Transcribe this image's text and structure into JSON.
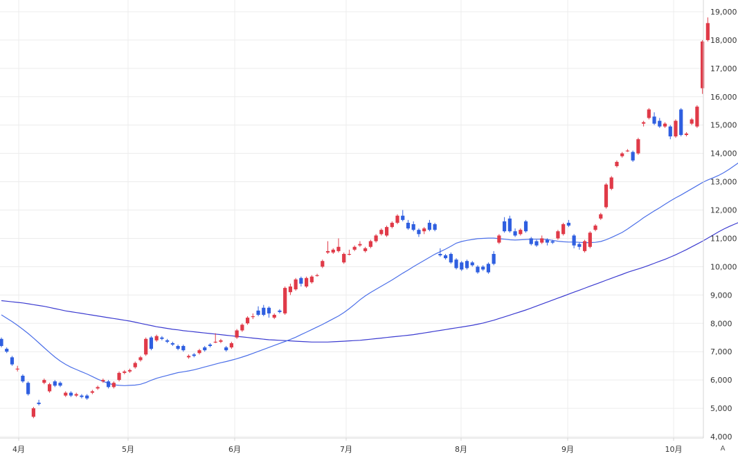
{
  "chart_data": {
    "type": "candlestick",
    "y_axis": {
      "min": 4000,
      "max": 19000,
      "ticks": [
        "4,000",
        "5,000",
        "6,000",
        "7,000",
        "8,000",
        "9,000",
        "10,000",
        "11,000",
        "12,000",
        "13,000",
        "14,000",
        "15,000",
        "16,000",
        "17,000",
        "18,000",
        "19,000"
      ]
    },
    "x_axis": {
      "ticks": [
        "4月",
        "5月",
        "6月",
        "7月",
        "8月",
        "9月",
        "10月"
      ]
    },
    "grid": true,
    "colors": {
      "up": "#e03a48",
      "down": "#2f5fe0",
      "ma_short": "#4a6ee8",
      "ma_long": "#3a3ad0",
      "grid": "#ececec",
      "axis": "#d4d4d4"
    },
    "candles": [
      [
        7450,
        7200,
        7500,
        7150
      ],
      [
        7100,
        7000,
        7150,
        6950
      ],
      [
        6800,
        6550,
        6850,
        6500
      ],
      [
        6400,
        6400,
        6500,
        6300
      ],
      [
        6150,
        5950,
        6200,
        5900
      ],
      [
        5900,
        5500,
        5950,
        5450
      ],
      [
        4700,
        5000,
        5050,
        4650
      ],
      [
        5200,
        5150,
        5300,
        5100
      ],
      [
        5900,
        6000,
        6050,
        5850
      ],
      [
        5600,
        5850,
        5900,
        5550
      ],
      [
        5950,
        5800,
        6000,
        5750
      ],
      [
        5900,
        5800,
        5950,
        5750
      ],
      [
        5450,
        5550,
        5600,
        5400
      ],
      [
        5550,
        5450,
        5600,
        5400
      ],
      [
        5450,
        5500,
        5550,
        5400
      ],
      [
        5450,
        5400,
        5500,
        5350
      ],
      [
        5450,
        5350,
        5500,
        5300
      ],
      [
        5550,
        5600,
        5650,
        5500
      ],
      [
        5700,
        5750,
        5800,
        5650
      ],
      [
        5950,
        6000,
        6050,
        5900
      ],
      [
        5950,
        5750,
        6000,
        5700
      ],
      [
        5750,
        5900,
        5950,
        5700
      ],
      [
        6000,
        6250,
        6300,
        5950
      ],
      [
        6250,
        6300,
        6350,
        6200
      ],
      [
        6300,
        6350,
        6400,
        6250
      ],
      [
        6450,
        6600,
        6650,
        6400
      ],
      [
        6700,
        6800,
        6850,
        6650
      ],
      [
        6900,
        7450,
        7500,
        6850
      ],
      [
        7500,
        7100,
        7550,
        7050
      ],
      [
        7400,
        7550,
        7600,
        7350
      ],
      [
        7500,
        7450,
        7550,
        7400
      ],
      [
        7400,
        7350,
        7450,
        7300
      ],
      [
        7300,
        7250,
        7350,
        7200
      ],
      [
        7200,
        7100,
        7250,
        7050
      ],
      [
        7200,
        7050,
        7250,
        7000
      ],
      [
        6800,
        6850,
        6900,
        6750
      ],
      [
        6900,
        6850,
        6950,
        6800
      ],
      [
        6950,
        7050,
        7100,
        6900
      ],
      [
        7150,
        7050,
        7200,
        7000
      ],
      [
        7250,
        7200,
        7300,
        7150
      ],
      [
        7350,
        7350,
        7650,
        7300
      ],
      [
        7350,
        7400,
        7450,
        7300
      ],
      [
        7150,
        7050,
        7200,
        7000
      ],
      [
        7150,
        7300,
        7350,
        7100
      ],
      [
        7500,
        7750,
        7800,
        7450
      ],
      [
        7750,
        7950,
        8000,
        7700
      ],
      [
        8000,
        8200,
        8250,
        7950
      ],
      [
        8250,
        8250,
        8350,
        8150
      ],
      [
        8450,
        8300,
        8600,
        8250
      ],
      [
        8550,
        8300,
        8650,
        8250
      ],
      [
        8550,
        8350,
        8600,
        8200
      ],
      [
        8200,
        8300,
        8350,
        8150
      ],
      [
        8450,
        8400,
        8500,
        8350
      ],
      [
        8350,
        9250,
        9300,
        8300
      ],
      [
        9100,
        9300,
        9400,
        9000
      ],
      [
        9200,
        9550,
        9600,
        9150
      ],
      [
        9600,
        9400,
        9650,
        9300
      ],
      [
        9300,
        9600,
        9650,
        9250
      ],
      [
        9450,
        9650,
        9700,
        9400
      ],
      [
        9700,
        9700,
        9750,
        9650
      ],
      [
        10000,
        10200,
        10250,
        9950
      ],
      [
        10500,
        10550,
        10900,
        10450
      ],
      [
        10500,
        10600,
        10650,
        10450
      ],
      [
        10550,
        10700,
        11000,
        10500
      ],
      [
        10150,
        10450,
        10500,
        10100
      ],
      [
        10450,
        10450,
        10600,
        10400
      ],
      [
        10600,
        10700,
        10750,
        10550
      ],
      [
        10750,
        10800,
        10900,
        10700
      ],
      [
        10550,
        10650,
        10700,
        10500
      ],
      [
        10700,
        10900,
        10950,
        10650
      ],
      [
        10900,
        11100,
        11150,
        10850
      ],
      [
        11150,
        11300,
        11350,
        11100
      ],
      [
        11100,
        11400,
        11450,
        11050
      ],
      [
        11400,
        11550,
        11600,
        11350
      ],
      [
        11550,
        11800,
        11850,
        11500
      ],
      [
        11800,
        11650,
        12000,
        11600
      ],
      [
        11550,
        11350,
        11650,
        11300
      ],
      [
        11500,
        11300,
        11600,
        11250
      ],
      [
        11300,
        11150,
        11350,
        11050
      ],
      [
        11250,
        11350,
        11400,
        11150
      ],
      [
        11550,
        11300,
        11650,
        11250
      ],
      [
        11500,
        11300,
        11550,
        11250
      ],
      [
        10450,
        10400,
        10650,
        10350
      ],
      [
        10400,
        10300,
        10450,
        10250
      ],
      [
        10450,
        10150,
        10500,
        10100
      ],
      [
        10250,
        9950,
        10300,
        9900
      ],
      [
        10150,
        9900,
        10200,
        9850
      ],
      [
        10200,
        9950,
        10250,
        9900
      ],
      [
        10150,
        10050,
        10200,
        10000
      ],
      [
        10000,
        9800,
        10050,
        9750
      ],
      [
        10000,
        9900,
        10050,
        9850
      ],
      [
        10100,
        9800,
        10150,
        9750
      ],
      [
        10450,
        10100,
        10550,
        10050
      ],
      [
        10850,
        11100,
        11150,
        10800
      ],
      [
        11600,
        11250,
        11750,
        11200
      ],
      [
        11700,
        11250,
        11800,
        11200
      ],
      [
        11250,
        11100,
        11350,
        11050
      ],
      [
        11150,
        11300,
        11350,
        11100
      ],
      [
        11600,
        11250,
        11650,
        11200
      ],
      [
        11000,
        10800,
        11050,
        10750
      ],
      [
        10900,
        10750,
        10950,
        10700
      ],
      [
        10850,
        11000,
        11100,
        10800
      ],
      [
        10950,
        10850,
        11000,
        10750
      ],
      [
        10900,
        10850,
        10950,
        10800
      ],
      [
        11000,
        11250,
        11300,
        10950
      ],
      [
        11150,
        11500,
        11550,
        11100
      ],
      [
        11550,
        11450,
        11650,
        11400
      ],
      [
        11100,
        10750,
        11150,
        10650
      ],
      [
        10800,
        10700,
        10850,
        10600
      ],
      [
        10550,
        10900,
        10950,
        10500
      ],
      [
        10700,
        11200,
        11250,
        10650
      ],
      [
        11300,
        11450,
        11500,
        11250
      ],
      [
        11700,
        11850,
        11900,
        11650
      ],
      [
        12100,
        12900,
        12950,
        12050
      ],
      [
        12750,
        13150,
        13200,
        12700
      ],
      [
        13550,
        13700,
        13750,
        13500
      ],
      [
        13900,
        14000,
        14050,
        13850
      ],
      [
        14100,
        14100,
        14150,
        14050
      ],
      [
        14050,
        13750,
        14100,
        13700
      ],
      [
        14000,
        14500,
        14550,
        13950
      ],
      [
        15050,
        15100,
        15150,
        14950
      ],
      [
        15250,
        15550,
        15600,
        15200
      ],
      [
        15300,
        15050,
        15450,
        15000
      ],
      [
        15150,
        14950,
        15250,
        14900
      ],
      [
        14950,
        15050,
        15100,
        14900
      ],
      [
        14950,
        14600,
        15000,
        14500
      ],
      [
        14600,
        15150,
        15200,
        14550
      ],
      [
        15550,
        14650,
        15600,
        14600
      ],
      [
        14650,
        14700,
        14750,
        14600
      ],
      [
        15050,
        15200,
        15250,
        15000
      ],
      [
        14950,
        15650,
        15700,
        14900
      ],
      [
        16300,
        17950,
        18000,
        16100
      ],
      [
        18000,
        18600,
        18800,
        17950
      ]
    ],
    "ma_short": [
      8300,
      8180,
      8060,
      7930,
      7790,
      7640,
      7480,
      7310,
      7140,
      6970,
      6810,
      6670,
      6550,
      6450,
      6370,
      6290,
      6210,
      6120,
      6030,
      5950,
      5880,
      5830,
      5810,
      5800,
      5810,
      5820,
      5850,
      5910,
      5990,
      6060,
      6110,
      6160,
      6210,
      6260,
      6290,
      6320,
      6360,
      6410,
      6460,
      6510,
      6560,
      6610,
      6650,
      6700,
      6750,
      6810,
      6870,
      6940,
      7010,
      7080,
      7150,
      7220,
      7290,
      7360,
      7430,
      7510,
      7600,
      7690,
      7780,
      7870,
      7960,
      8060,
      8160,
      8260,
      8380,
      8520,
      8670,
      8830,
      8970,
      9090,
      9200,
      9310,
      9420,
      9530,
      9650,
      9770,
      9880,
      10000,
      10110,
      10220,
      10330,
      10440,
      10530,
      10620,
      10720,
      10830,
      10890,
      10930,
      10960,
      10990,
      11000,
      11010,
      11010,
      10990,
      10970,
      10950,
      10940,
      10950,
      10960,
      10970,
      10970,
      10970,
      10960,
      10930,
      10900,
      10880,
      10870,
      10870,
      10860,
      10850,
      10850,
      10860,
      10890,
      10950,
      11030,
      11120,
      11210,
      11330,
      11460,
      11590,
      11730,
      11850,
      11970,
      12080,
      12200,
      12320,
      12430,
      12530,
      12640,
      12750,
      12860,
      12970,
      13060,
      13140,
      13220,
      13320,
      13440,
      13570,
      13700,
      13950
    ],
    "ma_long": [
      8800,
      8780,
      8760,
      8740,
      8720,
      8690,
      8660,
      8630,
      8600,
      8560,
      8520,
      8480,
      8440,
      8410,
      8380,
      8350,
      8320,
      8290,
      8260,
      8230,
      8200,
      8170,
      8140,
      8110,
      8080,
      8040,
      8000,
      7960,
      7920,
      7880,
      7850,
      7820,
      7790,
      7770,
      7740,
      7720,
      7700,
      7680,
      7660,
      7640,
      7620,
      7600,
      7580,
      7560,
      7540,
      7520,
      7500,
      7480,
      7460,
      7440,
      7420,
      7410,
      7400,
      7390,
      7380,
      7370,
      7360,
      7350,
      7340,
      7340,
      7340,
      7340,
      7350,
      7360,
      7370,
      7380,
      7390,
      7400,
      7420,
      7440,
      7460,
      7480,
      7500,
      7520,
      7540,
      7560,
      7580,
      7600,
      7630,
      7660,
      7690,
      7720,
      7750,
      7780,
      7810,
      7840,
      7870,
      7900,
      7930,
      7970,
      8010,
      8060,
      8110,
      8170,
      8230,
      8290,
      8350,
      8410,
      8470,
      8540,
      8610,
      8680,
      8750,
      8820,
      8890,
      8960,
      9030,
      9100,
      9170,
      9240,
      9310,
      9380,
      9450,
      9520,
      9590,
      9660,
      9730,
      9800,
      9860,
      9920,
      9980,
      10050,
      10120,
      10190,
      10260,
      10340,
      10420,
      10510,
      10600,
      10700,
      10800,
      10900,
      11010,
      11120,
      11230,
      11330,
      11420,
      11500,
      11580,
      11660,
      11760
    ]
  },
  "ui": {
    "auto_scale_label": "A"
  }
}
